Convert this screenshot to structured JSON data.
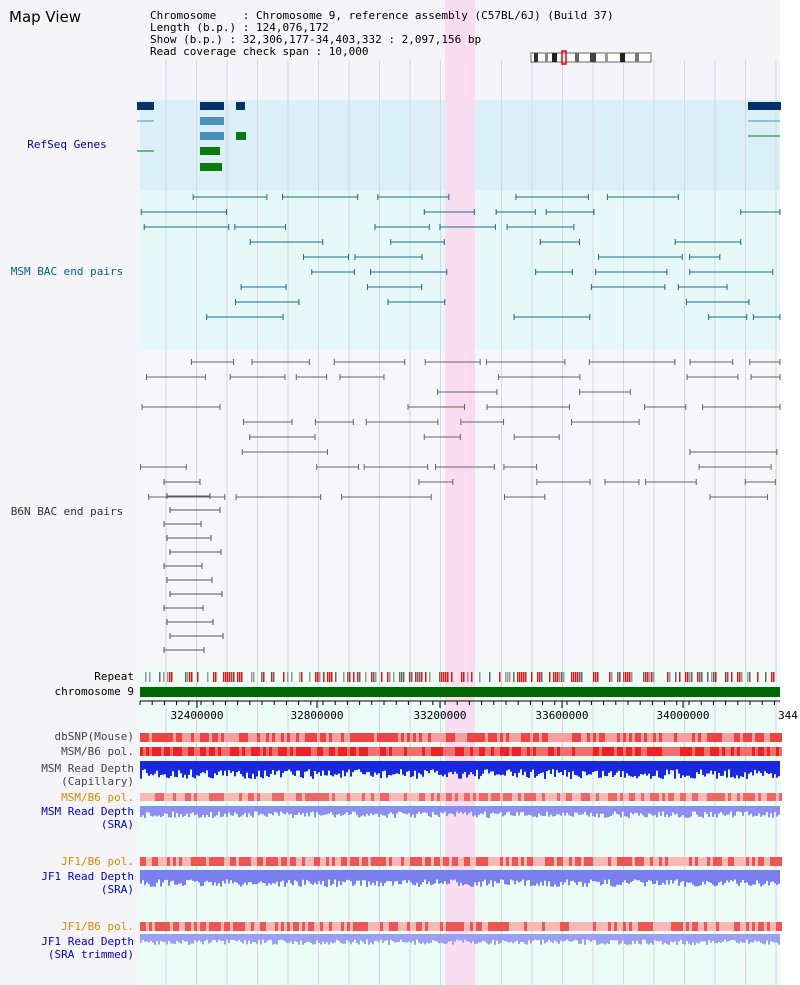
{
  "view_title": "Map View",
  "info": {
    "line1": "Chromosome    : Chromosome 9, reference assembly (C57BL/6J) (Build 37)",
    "line2": "Length (b.p.) : 124,076,172",
    "line3": "Show (b.p.) : 32,306,177-34,403,332 : 2,097,156 bp",
    "line4": "Read coverage check span : 10,000"
  },
  "tracks": {
    "refseq": "RefSeq Genes",
    "msm_bac": "MSM BAC end pairs",
    "b6n_bac": "B6N BAC end pairs",
    "repeat": "Repeat",
    "chromosome": "chromosome 9",
    "dbsnp": "dbSNP(Mouse)",
    "msm_b6_pol_1": "MSM/B6 pol.",
    "msm_depth_cap_1": "MSM Read Depth",
    "msm_depth_cap_2": "(Capillary)",
    "msm_b6_pol_2": "MSM/B6 pol.",
    "msm_depth_sra_1": "MSM Read Depth",
    "msm_depth_sra_2": "(SRA)",
    "jf1_b6_pol_1": "JF1/B6 pol.",
    "jf1_depth_sra_1": "JF1 Read Depth",
    "jf1_depth_sra_2": "(SRA)",
    "jf1_b6_pol_2": "JF1/B6 pol.",
    "jf1_depth_trim_1": "JF1 Read Depth",
    "jf1_depth_trim_2": "(SRA trimmed)"
  },
  "axis_ticks": [
    "32400000",
    "32800000",
    "33200000",
    "33600000",
    "34000000",
    "344"
  ],
  "colors": {
    "refseq_label": "#0000aa",
    "msm_label": "#006688",
    "b6n_label": "#333333",
    "orange_label": "#dd8800",
    "blue_label": "#0000cc",
    "gray_label": "#444444",
    "highlight": "#f9d9f0",
    "chromosome_bar": "#006600"
  }
}
